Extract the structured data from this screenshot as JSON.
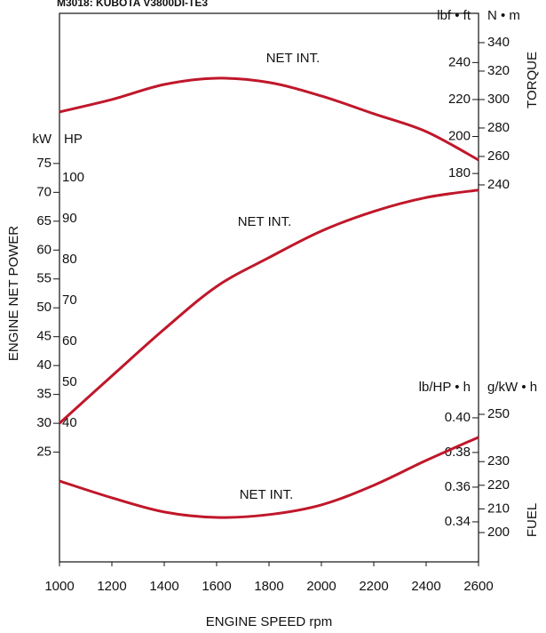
{
  "chart_data": {
    "type": "line",
    "title": "M3018: KUBOTA V3800DI-TE3",
    "x_label": "ENGINE SPEED rpm",
    "x": [
      1000,
      1200,
      1400,
      1600,
      1800,
      2000,
      2200,
      2400,
      2600
    ],
    "xlim": [
      1000,
      2600
    ],
    "xticks": [
      1000,
      1200,
      1400,
      1600,
      1800,
      2000,
      2200,
      2400,
      2600
    ],
    "panels": [
      {
        "label": "TORQUE",
        "scales": [
          {
            "unit": "lbf • ft",
            "lim": [
              -30,
              266.6
            ],
            "ticks": [
              180,
              200,
              220,
              240
            ]
          },
          {
            "unit": "N • m",
            "lim": [
              -25,
              360.6
            ],
            "ticks": [
              240,
              260,
              280,
              300,
              320,
              340
            ]
          }
        ],
        "series": {
          "name": "NET INT.",
          "color": "#c0172a",
          "values": [
            291.3,
            300,
            310.6,
            315,
            312,
            302.5,
            290,
            277.5,
            257.5
          ]
        }
      },
      {
        "label": "ENGINE NET POWER",
        "scales": [
          {
            "unit": "kW",
            "lim": [
              6,
              101
            ],
            "ticks": [
              25,
              30,
              35,
              40,
              45,
              50,
              55,
              60,
              65,
              70,
              75
            ]
          },
          {
            "unit": "HP",
            "lim": [
              6.1,
              140.2
            ],
            "ticks": [
              40,
              50,
              60,
              70,
              80,
              90,
              100
            ]
          }
        ],
        "series": {
          "name": "NET INT.",
          "color": "#c0172a",
          "values": [
            30,
            38.2,
            46.3,
            53.7,
            58.7,
            63.3,
            66.7,
            69.1,
            70.4
          ]
        }
      },
      {
        "label": "FUEL",
        "scales": [
          {
            "unit": "lb/HP • h",
            "lim": [
              0.3169,
              0.6333
            ],
            "ticks": [
              0.34,
              0.36,
              0.38,
              {
                "value": 0.4,
                "label": "0.40"
              }
            ]
          },
          {
            "unit": "g/kW • h",
            "lim": [
              187.6,
              419.6
            ],
            "ticks": [
              200,
              210,
              220,
              230,
              250
            ]
          }
        ],
        "series": {
          "name": "NET INT.",
          "color": "#c0172a",
          "values": [
            221.8,
            214.7,
            208.7,
            206.4,
            207.6,
            211.7,
            220,
            230.5,
            240.3
          ]
        }
      }
    ]
  }
}
